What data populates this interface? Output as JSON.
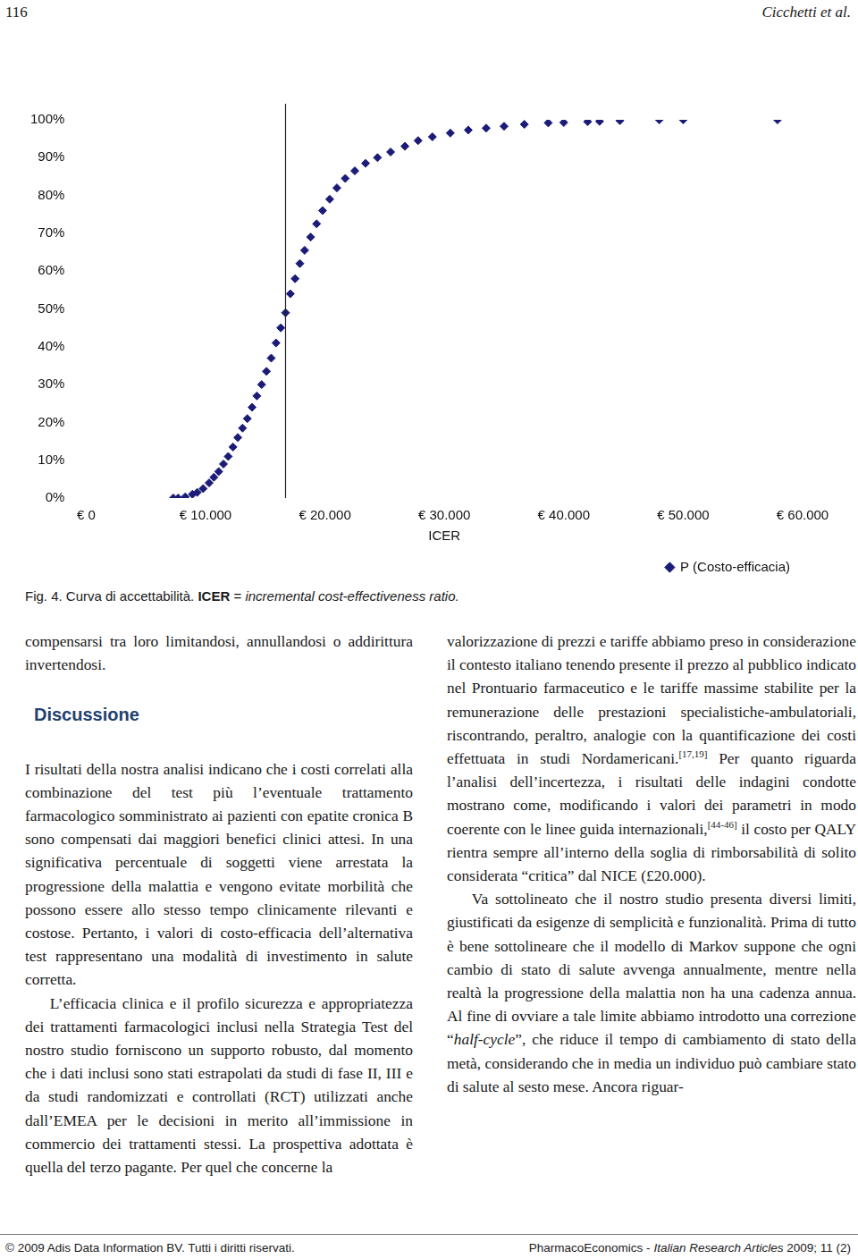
{
  "header": {
    "page": "116",
    "running_title": "Cicchetti et al."
  },
  "chart_data": {
    "type": "scatter",
    "x_label": "ICER",
    "series": [
      {
        "name": "P (Costo-efficacia)",
        "color": "#1c1c78",
        "marker": "diamond",
        "x": [
          7300,
          7700,
          8300,
          8900,
          9300,
          9800,
          10300,
          10700,
          11100,
          11500,
          11900,
          12300,
          12700,
          13100,
          13500,
          13900,
          14300,
          14700,
          15100,
          15500,
          15900,
          16300,
          16700,
          17100,
          17500,
          17900,
          18300,
          18800,
          19300,
          19800,
          20400,
          21000,
          21700,
          22500,
          23400,
          24400,
          25500,
          26700,
          27800,
          29000,
          30500,
          32000,
          33500,
          35000,
          36700,
          38700,
          40000,
          42000,
          43000,
          44700,
          48000,
          50000,
          57900
        ],
        "values": [
          0,
          0,
          0.3,
          1,
          1.5,
          2.5,
          4,
          5.5,
          7,
          9,
          11,
          13.5,
          16,
          18.5,
          21,
          24,
          27,
          30,
          33.5,
          37,
          41,
          45,
          49,
          54,
          58,
          62,
          65.5,
          69,
          72.5,
          76,
          79,
          82,
          84.5,
          86.5,
          88.5,
          90,
          91.5,
          93,
          94.5,
          95.5,
          96.5,
          97.3,
          97.8,
          98.3,
          98.8,
          99.2,
          99.3,
          99.5,
          99.6,
          99.8,
          100,
          100,
          100
        ]
      }
    ],
    "vertical_line": 16700,
    "xlim": [
      0,
      60000
    ],
    "xticks": [
      {
        "value": 0,
        "label": "€ 0"
      },
      {
        "value": 10000,
        "label": "€ 10.000"
      },
      {
        "value": 20000,
        "label": "€ 20.000"
      },
      {
        "value": 30000,
        "label": "€ 30.000"
      },
      {
        "value": 40000,
        "label": "€ 40.000"
      },
      {
        "value": 50000,
        "label": "€ 50.000"
      },
      {
        "value": 60000,
        "label": "€ 60.000"
      }
    ],
    "ylim": [
      0,
      100
    ],
    "yticks": [
      {
        "value": 0,
        "label": "0%"
      },
      {
        "value": 10,
        "label": "10%"
      },
      {
        "value": 20,
        "label": "20%"
      },
      {
        "value": 30,
        "label": "30%"
      },
      {
        "value": 40,
        "label": "40%"
      },
      {
        "value": 50,
        "label": "50%"
      },
      {
        "value": 60,
        "label": "60%"
      },
      {
        "value": 70,
        "label": "70%"
      },
      {
        "value": 80,
        "label": "80%"
      },
      {
        "value": 90,
        "label": "90%"
      },
      {
        "value": 100,
        "label": "100%"
      }
    ],
    "grid": false,
    "legend": "bottom-right"
  },
  "caption": [
    "Fig. 4. Curva di accettabilità. ",
    {
      "b": "ICER"
    },
    " = ",
    {
      "i": "incremental cost-effectiveness ratio."
    }
  ],
  "columns": {
    "left": [
      {
        "kind": "p",
        "indent": false,
        "segments": [
          "compensarsi tra loro limitandosi, annullandosi o addirittura invertendosi."
        ]
      },
      {
        "kind": "heading",
        "text": "Discussione"
      },
      {
        "kind": "p",
        "indent": false,
        "segments": [
          "I risultati della nostra analisi indicano che i costi correlati alla combinazione del test più l’eventuale trattamento farmacologico somministrato ai pazienti con epatite cronica B sono compensati dai maggiori benefici clinici attesi. In una significativa percentuale di soggetti viene arrestata la progressione della malattia e vengono evitate morbilità che possono essere allo stesso tempo clinicamente rilevanti e costose. Pertanto, i valori di costo-efficacia dell’alternativa test rappresentano una modalità di investimento in salute corretta."
        ]
      },
      {
        "kind": "p",
        "indent": true,
        "segments": [
          "L’efficacia clinica e il profilo sicurezza e appropriatezza dei trattamenti farmacologici inclusi nella Strategia Test del nostro studio forniscono un supporto robusto, dal momento che i dati inclusi sono stati estrapolati da studi di fase II, III e da studi randomizzati e controllati (RCT) utilizzati anche dall’EMEA per le decisioni in merito all’immissione in commercio dei trattamenti stessi. La prospettiva adottata è quella del terzo pagante. Per quel che concerne la"
        ]
      }
    ],
    "right": [
      {
        "kind": "p",
        "indent": false,
        "segments": [
          "valorizzazione di prezzi e tariffe abbiamo preso in considerazione il contesto italiano tenendo presente il prezzo al pubblico indicato nel Prontuario farmaceutico e le tariffe massime stabilite per la remunerazione delle prestazioni specialistiche-ambulatoriali, riscontrando, peraltro, analogie con la quantificazione dei costi effettuata in studi Nordamericani.",
          {
            "sup": "[17,19]"
          },
          " Per quanto riguarda l’analisi dell’incertezza, i risultati delle indagini condotte mostrano come, modificando i valori dei parametri in modo coerente con le linee guida internazionali,",
          {
            "sup": "[44-46]"
          },
          " il costo per QALY rientra sempre all’interno della soglia di rimborsabilità di solito considerata “critica” dal NICE (£20.000)."
        ]
      },
      {
        "kind": "p",
        "indent": true,
        "segments": [
          "Va sottolineato che il nostro studio presenta diversi limiti, giustificati da esigenze di semplicità e funzionalità. Prima di tutto è bene sottolineare che il modello di Markov suppone che ogni cambio di stato di salute avvenga annualmente, mentre nella realtà la progressione della malattia non ha una cadenza annua. Al fine di ovviare a tale limite abbiamo introdotto una correzione “",
          {
            "i": "half-cycle"
          },
          "”, che riduce il tempo di cambiamento di stato della metà, considerando che in media un individuo può cambiare stato di salute al sesto mese. Ancora riguar-"
        ]
      }
    ]
  },
  "footer": {
    "left": "© 2009 Adis Data Information BV. Tutti i diritti riservati.",
    "right": [
      "PharmacoEconomics - ",
      {
        "i": "Italian Research Articles"
      },
      " 2009; 11 (2)"
    ]
  }
}
